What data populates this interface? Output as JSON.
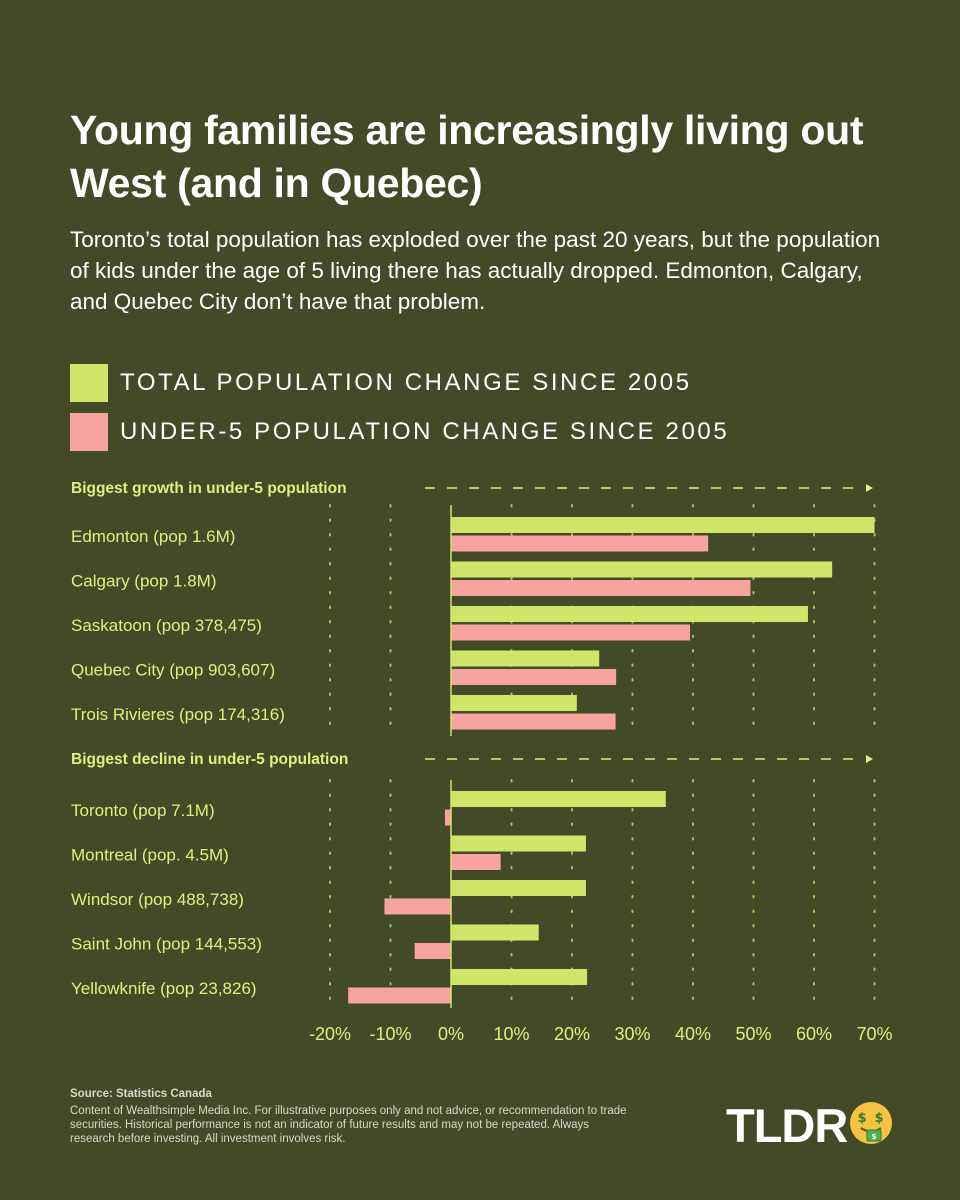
{
  "header": {
    "title": "Young families are increasingly living out West (and in Quebec)",
    "subtitle": "Toronto’s total population has exploded over the past 20 years, but the population of kids under the age of 5 living there has actually dropped. Edmonton, Calgary, and Quebec City don’t have that problem."
  },
  "legend": {
    "total": "TOTAL POPULATION CHANGE SINCE 2005",
    "under5": "UNDER-5 POPULATION CHANGE SINCE 2005"
  },
  "colors": {
    "background": "#434a28",
    "total": "#cfe66a",
    "under5": "#f7a4a1",
    "section_label": "#dff07c"
  },
  "chart_data": {
    "type": "bar",
    "orientation": "horizontal",
    "unit": "%",
    "xlim": [
      -20,
      70
    ],
    "ticks": [
      "-20%",
      "-10%",
      "0%",
      "10%",
      "20%",
      "30%",
      "40%",
      "50%",
      "60%",
      "70%"
    ],
    "tick_values": [
      -20,
      -10,
      0,
      10,
      20,
      30,
      40,
      50,
      60,
      70
    ],
    "series": [
      {
        "name": "TOTAL POPULATION CHANGE SINCE 2005"
      },
      {
        "name": "UNDER-5 POPULATION CHANGE SINCE 2005"
      }
    ],
    "groups": [
      {
        "label": "Biggest growth in under-5 population",
        "rows": [
          {
            "city": "Edmonton (pop 1.6M)",
            "total": 70,
            "under5": 42.5
          },
          {
            "city": "Calgary (pop 1.8M)",
            "total": 63,
            "under5": 49.5
          },
          {
            "city": "Saskatoon (pop 378,475)",
            "total": 59,
            "under5": 39.5
          },
          {
            "city": "Quebec City (pop 903,607)",
            "total": 24.5,
            "under5": 27.3
          },
          {
            "city": "Trois Rivieres (pop 174,316)",
            "total": 20.8,
            "under5": 27.2
          }
        ]
      },
      {
        "label": "Biggest decline in under-5 population",
        "rows": [
          {
            "city": "Toronto (pop 7.1M)",
            "total": 35.5,
            "under5": -1
          },
          {
            "city": "Montreal (pop. 4.5M)",
            "total": 22.3,
            "under5": 8.2
          },
          {
            "city": "Windsor (pop 488,738)",
            "total": 22.3,
            "under5": -11
          },
          {
            "city": "Saint John (pop 144,553)",
            "total": 14.5,
            "under5": -6
          },
          {
            "city": "Yellowknife (pop 23,826)",
            "total": 22.5,
            "under5": -17
          }
        ]
      }
    ]
  },
  "footer": {
    "source": "Source: Statistics Canada",
    "disclaimer": "Content of Wealthsimple Media Inc. For illustrative purposes only and not advice, or recommendation to trade securities. Historical performance is not an indicator of future results and may not be repeated. Always research before investing. All investment involves risk.",
    "logo": "TLDR",
    "logo_icon": "money-face-icon"
  }
}
